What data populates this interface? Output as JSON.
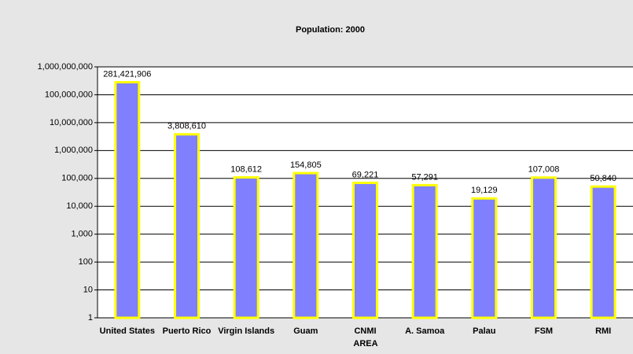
{
  "chart_data": {
    "type": "bar",
    "title": "Population: 2000",
    "x_label": "AREA",
    "categories": [
      "United States",
      "Puerto Rico",
      "Virgin Islands",
      "Guam",
      "CNMI",
      "A. Samoa",
      "Palau",
      "FSM",
      "RMI"
    ],
    "values": [
      281421906,
      3808610,
      108612,
      154805,
      69221,
      57291,
      19129,
      107008,
      50840
    ],
    "value_labels": [
      "281,421,906",
      "3,808,610",
      "108,612",
      "154,805",
      "69,221",
      "57,291",
      "19,129",
      "107,008",
      "50,840"
    ],
    "color": "#8080ff",
    "edge_color": "#ffff00",
    "log_scale": true,
    "ylim": [
      1,
      1000000000
    ],
    "yticks": [
      1,
      10,
      100,
      {
        "value": 1000,
        "label": "1,000"
      },
      {
        "value": 10000,
        "label": "10,000"
      },
      {
        "value": 100000,
        "label": "100,000"
      },
      {
        "value": 1000000,
        "label": "1,000,000"
      },
      {
        "value": 10000000,
        "label": "10,000,000"
      },
      {
        "value": 100000000,
        "label": "100,000,000"
      },
      {
        "value": 1000000000,
        "label": "1,000,000,000"
      }
    ],
    "grid": true
  }
}
